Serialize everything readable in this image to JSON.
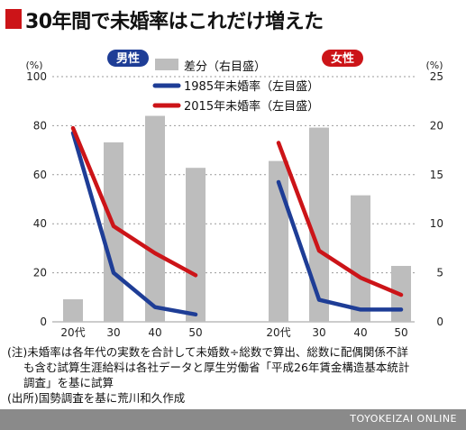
{
  "title": "30年間で未婚率はこれだけ増えた",
  "colors": {
    "accent": "#cc1418",
    "male_badge": "#1e3d96",
    "female_badge": "#cc1418",
    "bar": "#bdbdbd",
    "line_1985": "#1e3d96",
    "line_2015": "#cc1418"
  },
  "chart_data": {
    "type": "bar+line",
    "left_axis": {
      "unit": "(%)",
      "ticks": [
        "0",
        "20",
        "40",
        "60",
        "80",
        "100"
      ],
      "ylim": [
        0,
        100
      ]
    },
    "right_axis": {
      "unit": "(%)",
      "ticks": [
        "0",
        "5",
        "10",
        "15",
        "20",
        "25"
      ],
      "ylim": [
        0,
        25
      ]
    },
    "legend": [
      {
        "key": "diff",
        "label": "差分（右目盛）"
      },
      {
        "key": "y1985",
        "label": "1985年未婚率（左目盛）"
      },
      {
        "key": "y2015",
        "label": "2015年未婚率（左目盛）"
      }
    ],
    "panels": [
      {
        "label": "男性",
        "categories": [
          "20代",
          "30",
          "40",
          "50"
        ],
        "diff_right": [
          2.3,
          18.3,
          21.0,
          15.7
        ],
        "y1985_left": [
          77,
          20,
          6,
          3
        ],
        "y2015_left": [
          79,
          39,
          28,
          19
        ]
      },
      {
        "label": "女性",
        "categories": [
          "20代",
          "30",
          "40",
          "50"
        ],
        "diff_right": [
          16.4,
          19.8,
          12.9,
          5.7
        ],
        "y1985_left": [
          57,
          9,
          5,
          5
        ],
        "y2015_left": [
          73,
          29,
          18,
          11
        ]
      }
    ]
  },
  "notes": [
    "(注)未婚率は各年代の実数を合計して未婚数÷総数で算出、総数に配偶関係不詳",
    "も含む試算生涯給料は各社データと厚生労働省「平成26年賃金構造基本統計",
    "調査」を基に試算",
    "(出所)国勢調査を基に荒川和久作成"
  ],
  "footer": "TOYOKEIZAI ONLINE"
}
